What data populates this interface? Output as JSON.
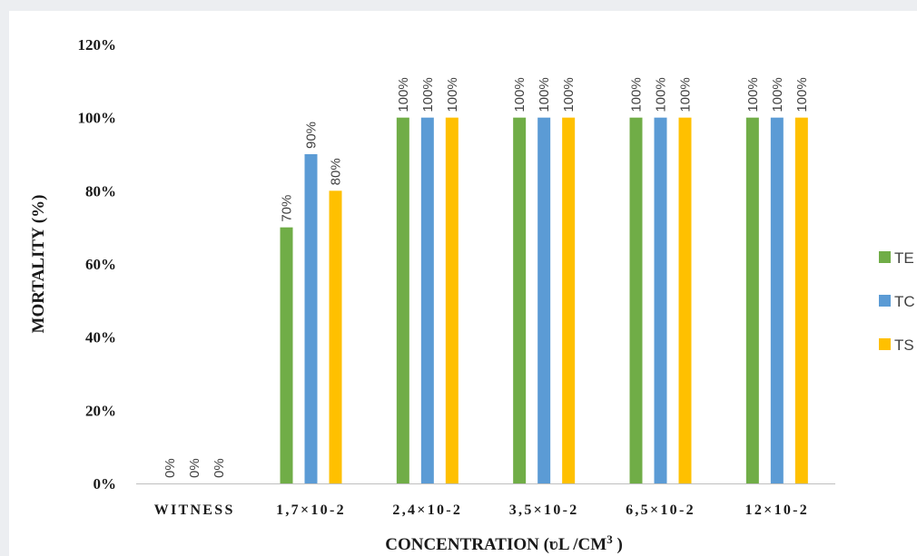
{
  "chart_data": {
    "type": "bar",
    "title": "",
    "xlabel_main": "CONCENTRATION (",
    "xlabel_unit": "ʋL /CM",
    "xlabel_sup": "3",
    "xlabel_close": " )",
    "ylabel": "MORTALITY (%)",
    "ylim": [
      0,
      120
    ],
    "yticks": [
      "0%",
      "20%",
      "40%",
      "60%",
      "80%",
      "100%",
      "120%"
    ],
    "categories": [
      "WITNESS",
      "1,7×10-2",
      "2,4×10-2",
      "3,5×10-2",
      "6,5×10-2",
      "12×10-2"
    ],
    "series": [
      {
        "name": "TE",
        "color": "#70ad47",
        "values": [
          0,
          70,
          100,
          100,
          100,
          100
        ],
        "labels": [
          "0%",
          "70%",
          "100%",
          "100%",
          "100%",
          "100%"
        ]
      },
      {
        "name": "TC",
        "color": "#5b9bd5",
        "values": [
          0,
          90,
          100,
          100,
          100,
          100
        ],
        "labels": [
          "0%",
          "90%",
          "100%",
          "100%",
          "100%",
          "100%"
        ]
      },
      {
        "name": "TS",
        "color": "#ffc000",
        "values": [
          0,
          80,
          100,
          100,
          100,
          100
        ],
        "labels": [
          "0%",
          "80%",
          "100%",
          "100%",
          "100%",
          "100%"
        ]
      }
    ],
    "grid": false,
    "legend_position": "right"
  }
}
